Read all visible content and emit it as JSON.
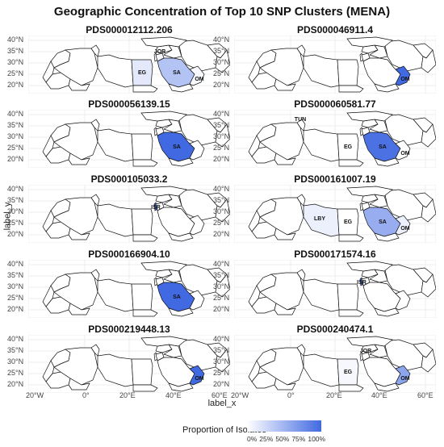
{
  "title": "Geographic Concentration of Top 10 SNP Clusters (MENA)",
  "axes": {
    "xlabel": "label_x",
    "ylabel": "label_y",
    "y_ticks": [
      "40°N",
      "35°N",
      "30°N",
      "25°N",
      "20°N"
    ],
    "x_ticks": [
      "20°W",
      "0°",
      "20°E",
      "40°E",
      "60°E"
    ]
  },
  "legend": {
    "title": "Proportion of Isolates",
    "labels": [
      "0%",
      "25%",
      "50%",
      "75%",
      "100%"
    ],
    "low_color": "#ffffff",
    "high_color": "#4169e1"
  },
  "panels": [
    {
      "title": "PDS000012112.206",
      "regions": [
        {
          "code": "EG",
          "proportion": 0.15
        },
        {
          "code": "SA",
          "proportion": 0.4
        },
        {
          "code": "JOR",
          "proportion": 0.05
        },
        {
          "code": "OM",
          "proportion": 0.05
        }
      ]
    },
    {
      "title": "PDS000046911.4",
      "regions": [
        {
          "code": "OM",
          "proportion": 1.0
        }
      ]
    },
    {
      "title": "PDS000056139.15",
      "regions": [
        {
          "code": "SA",
          "proportion": 1.0
        }
      ]
    },
    {
      "title": "PDS000060581.77",
      "regions": [
        {
          "code": "TUN",
          "proportion": 0.0
        },
        {
          "code": "EG",
          "proportion": 0.0
        },
        {
          "code": "SA",
          "proportion": 0.95
        },
        {
          "code": "OM",
          "proportion": 0.0
        }
      ]
    },
    {
      "title": "PDS000105033.2",
      "regions": [
        {
          "code": "ISR",
          "proportion": 1.0
        }
      ]
    },
    {
      "title": "PDS000161007.19",
      "regions": [
        {
          "code": "LBY",
          "proportion": 0.1
        },
        {
          "code": "EG",
          "proportion": 0.0
        },
        {
          "code": "SA",
          "proportion": 0.55
        },
        {
          "code": "OM",
          "proportion": 0.1
        }
      ]
    },
    {
      "title": "PDS000166904.10",
      "regions": [
        {
          "code": "SA",
          "proportion": 1.0
        }
      ]
    },
    {
      "title": "PDS000171574.16",
      "regions": [
        {
          "code": "ISR",
          "proportion": 1.0
        }
      ]
    },
    {
      "title": "PDS000219448.13",
      "regions": [
        {
          "code": "OM",
          "proportion": 1.0
        }
      ]
    },
    {
      "title": "PDS000240474.1",
      "regions": [
        {
          "code": "EG",
          "proportion": 0.05
        },
        {
          "code": "JOR",
          "proportion": 0.0
        },
        {
          "code": "OM",
          "proportion": 0.6
        }
      ]
    }
  ]
}
